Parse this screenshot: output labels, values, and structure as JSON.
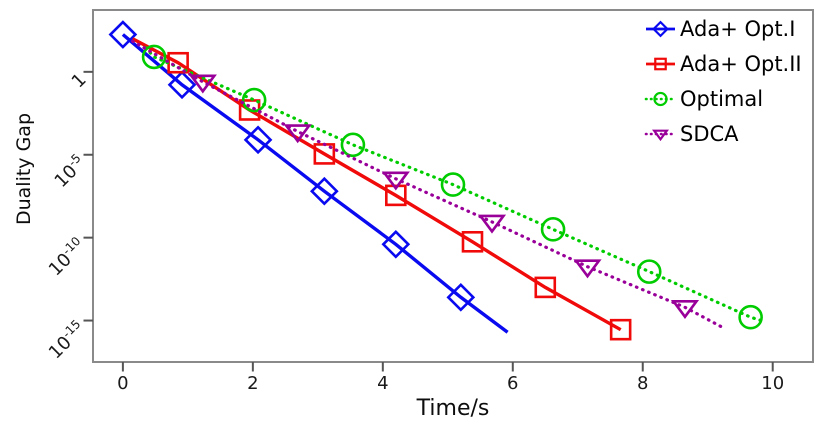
{
  "chart_data": {
    "type": "line",
    "xlabel": "Time/s",
    "ylabel": "Duality Gap",
    "y_scale": "log10",
    "grid": false,
    "legend_position": "upper-right",
    "legend_frame": false,
    "xlim": [
      -0.46,
      10.62
    ],
    "ylim_log10": [
      -17.5,
      3.73
    ],
    "x_ticks": [
      {
        "value": 0,
        "label": "0"
      },
      {
        "value": 2,
        "label": "2"
      },
      {
        "value": 4,
        "label": "4"
      },
      {
        "value": 6,
        "label": "6"
      },
      {
        "value": 8,
        "label": "8"
      },
      {
        "value": 10,
        "label": "10"
      }
    ],
    "y_ticks": [
      {
        "log10": 0,
        "base": "1",
        "exp": ""
      },
      {
        "log10": -5,
        "base": "10",
        "exp": "-5"
      },
      {
        "log10": -10,
        "base": "10",
        "exp": "-10"
      },
      {
        "log10": -15,
        "base": "10",
        "exp": "-15"
      }
    ],
    "series": [
      {
        "name": "Ada+ Opt.I",
        "color": "#0A0AF0",
        "line_style": "solid",
        "marker": "diamond",
        "points_t_log10gap": [
          [
            0.0,
            2.25
          ],
          [
            0.91,
            -0.78
          ],
          [
            2.08,
            -4.1
          ],
          [
            3.1,
            -7.2
          ],
          [
            4.2,
            -10.4
          ],
          [
            5.2,
            -13.6
          ]
        ],
        "line_extra_end": [
          5.92,
          -15.7
        ]
      },
      {
        "name": "Ada+ Opt.II",
        "color": "#F00A0A",
        "line_style": "solid",
        "marker": "square",
        "line_extra_start": [
          0.15,
          2.0
        ],
        "points_t_log10gap": [
          [
            0.85,
            0.55
          ],
          [
            1.95,
            -2.3
          ],
          [
            3.1,
            -4.95
          ],
          [
            4.2,
            -7.45
          ],
          [
            5.38,
            -10.25
          ],
          [
            6.5,
            -13.0
          ],
          [
            7.66,
            -15.55
          ]
        ]
      },
      {
        "name": "Optimal",
        "color": "#00CC00",
        "line_style": "dotted",
        "marker": "circle",
        "line_extra_start": [
          0.35,
          1.45
        ],
        "points_t_log10gap": [
          [
            0.48,
            0.9
          ],
          [
            2.02,
            -1.7
          ],
          [
            3.54,
            -4.4
          ],
          [
            5.08,
            -6.8
          ],
          [
            6.62,
            -9.5
          ],
          [
            8.1,
            -12.05
          ],
          [
            9.66,
            -14.8
          ]
        ],
        "line_extra_end": [
          9.9,
          -15.1
        ]
      },
      {
        "name": "SDCA",
        "color": "#990099",
        "line_style": "dotted",
        "marker": "triangle-down",
        "line_extra_start": [
          0.15,
          1.85
        ],
        "points_t_log10gap": [
          [
            1.23,
            -0.6
          ],
          [
            2.69,
            -3.6
          ],
          [
            4.2,
            -6.45
          ],
          [
            5.68,
            -9.05
          ],
          [
            7.15,
            -11.75
          ],
          [
            8.65,
            -14.2
          ]
        ],
        "line_extra_end": [
          9.2,
          -15.35
        ]
      }
    ]
  }
}
